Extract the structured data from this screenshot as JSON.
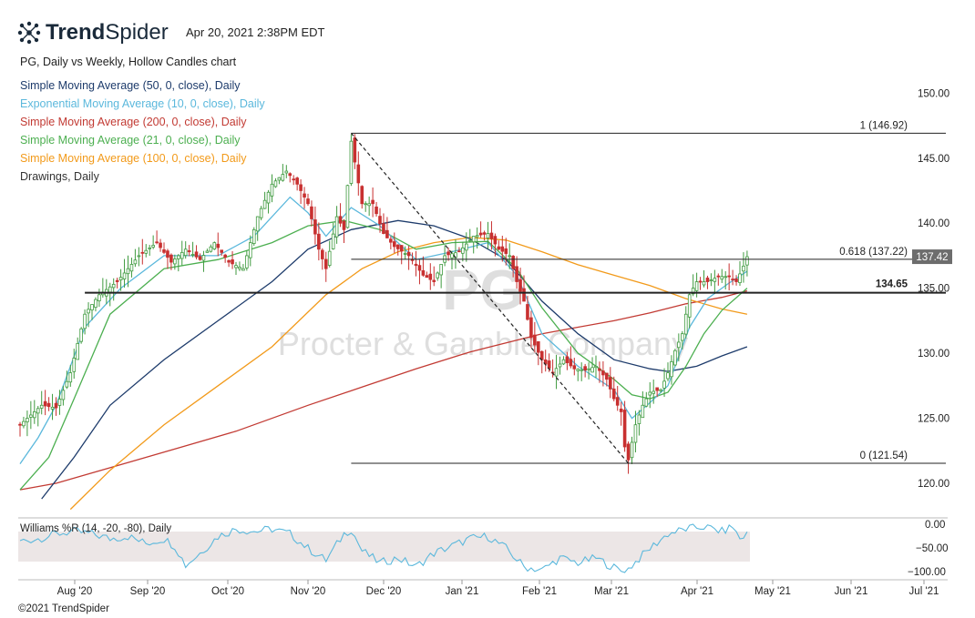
{
  "header": {
    "brand_bold": "Trend",
    "brand_light": "Spider",
    "timestamp": "Apr 20, 2021 2:38PM EDT",
    "subtitle": "PG, Daily vs Weekly, Hollow Candles chart",
    "copyright": "©2021 TrendSpider"
  },
  "legend": [
    {
      "label": "Simple Moving Average (50, 0, close), Daily",
      "color": "#1d3b6b"
    },
    {
      "label": "Exponential Moving Average (10, 0, close), Daily",
      "color": "#5bb8dc"
    },
    {
      "label": "Simple Moving Average (200, 0, close), Daily",
      "color": "#c23a33"
    },
    {
      "label": "Simple Moving Average (21, 0, close), Daily",
      "color": "#4caf50"
    },
    {
      "label": "Simple Moving Average (100, 0, close), Daily",
      "color": "#f29a1a"
    },
    {
      "label": "Drawings, Daily",
      "color": "#333333"
    }
  ],
  "watermark": {
    "symbol": "PG",
    "name": "Procter & Gamble Company"
  },
  "oscillator": {
    "label": "Williams %R (14, -20, -80), Daily",
    "color": "#5bb8dc",
    "ticks": [
      "0.00",
      "−50.00",
      "−100.00"
    ]
  },
  "chart_data": {
    "type": "candlestick",
    "symbol": "PG",
    "ylim": [
      118,
      152
    ],
    "ytick_labels": [
      "120.00",
      "125.00",
      "130.00",
      "135.00",
      "140.00",
      "145.00",
      "150.00"
    ],
    "yticks": [
      120,
      125,
      130,
      135,
      140,
      145,
      150
    ],
    "xtick_labels": [
      "Aug '20",
      "Sep '20",
      "Oct '20",
      "Nov '20",
      "Dec '20",
      "Jan '21",
      "Feb '21",
      "Mar '21",
      "Apr '21",
      "May '21",
      "Jun '21",
      "Jul '21"
    ],
    "price_path": [
      [
        0,
        124.5
      ],
      [
        6,
        126
      ],
      [
        10,
        125.8
      ],
      [
        14,
        128.5
      ],
      [
        18,
        133
      ],
      [
        22,
        134.5
      ],
      [
        27,
        135.5
      ],
      [
        33,
        137.5
      ],
      [
        38,
        138.5
      ],
      [
        42,
        137
      ],
      [
        46,
        138
      ],
      [
        50,
        137.2
      ],
      [
        54,
        138.5
      ],
      [
        58,
        137
      ],
      [
        62,
        136.5
      ],
      [
        66,
        140.5
      ],
      [
        70,
        143
      ],
      [
        74,
        144
      ],
      [
        77,
        143
      ],
      [
        80,
        141.5
      ],
      [
        83,
        138
      ],
      [
        85,
        136.5
      ],
      [
        88,
        140.5
      ],
      [
        90,
        139.5
      ],
      [
        92,
        146.3
      ],
      [
        95,
        141.5
      ],
      [
        98,
        141.5
      ],
      [
        101,
        139.2
      ],
      [
        104,
        138.2
      ],
      [
        108,
        137.5
      ],
      [
        112,
        136
      ],
      [
        115,
        135.5
      ],
      [
        118,
        137.5
      ],
      [
        122,
        137.8
      ],
      [
        126,
        139
      ],
      [
        130,
        139.2
      ],
      [
        133,
        138
      ],
      [
        136,
        137.5
      ],
      [
        138,
        135.5
      ],
      [
        140,
        134
      ],
      [
        142,
        131.2
      ],
      [
        145,
        129.5
      ],
      [
        148,
        128.5
      ],
      [
        151,
        129.5
      ],
      [
        154,
        128.8
      ],
      [
        157,
        128.7
      ],
      [
        160,
        129
      ],
      [
        163,
        128
      ],
      [
        165,
        126.5
      ],
      [
        167,
        125.5
      ],
      [
        168,
        122.8
      ],
      [
        169,
        121.8
      ],
      [
        171,
        124.5
      ],
      [
        173,
        126
      ],
      [
        175,
        127
      ],
      [
        178,
        127.2
      ],
      [
        180,
        128.5
      ],
      [
        182,
        130.2
      ],
      [
        184,
        131.5
      ],
      [
        186,
        134.5
      ],
      [
        188,
        135.5
      ],
      [
        191,
        135.5
      ],
      [
        194,
        135.9
      ],
      [
        197,
        135.9
      ],
      [
        199,
        135.5
      ],
      [
        201,
        136.7
      ],
      [
        202,
        137.42
      ]
    ],
    "sma50_path": [
      [
        6,
        118.8
      ],
      [
        15,
        122
      ],
      [
        25,
        126
      ],
      [
        40,
        129.5
      ],
      [
        55,
        132.5
      ],
      [
        70,
        135.5
      ],
      [
        80,
        138
      ],
      [
        92,
        139.5
      ],
      [
        105,
        140.2
      ],
      [
        115,
        139.8
      ],
      [
        125,
        138.8
      ],
      [
        135,
        137.2
      ],
      [
        145,
        134
      ],
      [
        155,
        131.5
      ],
      [
        165,
        129.5
      ],
      [
        175,
        128.8
      ],
      [
        180,
        128.6
      ],
      [
        188,
        129
      ],
      [
        195,
        129.8
      ],
      [
        202,
        130.5
      ]
    ],
    "ema10_path": [
      [
        0,
        121.5
      ],
      [
        5,
        123.5
      ],
      [
        10,
        126
      ],
      [
        18,
        132
      ],
      [
        28,
        135
      ],
      [
        40,
        137.5
      ],
      [
        55,
        137.5
      ],
      [
        65,
        139
      ],
      [
        75,
        142
      ],
      [
        80,
        140.8
      ],
      [
        85,
        139
      ],
      [
        92,
        141.2
      ],
      [
        100,
        139.8
      ],
      [
        110,
        137.2
      ],
      [
        120,
        137.8
      ],
      [
        130,
        138.5
      ],
      [
        138,
        136
      ],
      [
        145,
        131.5
      ],
      [
        155,
        129
      ],
      [
        165,
        127.2
      ],
      [
        170,
        125
      ],
      [
        175,
        126.2
      ],
      [
        180,
        127.5
      ],
      [
        186,
        132
      ],
      [
        191,
        134.2
      ],
      [
        197,
        135.4
      ],
      [
        202,
        136.3
      ]
    ],
    "sma21_path": [
      [
        0,
        119.5
      ],
      [
        8,
        122
      ],
      [
        15,
        126.5
      ],
      [
        25,
        133
      ],
      [
        40,
        136.5
      ],
      [
        55,
        137.2
      ],
      [
        70,
        138.5
      ],
      [
        80,
        139.8
      ],
      [
        90,
        140.2
      ],
      [
        100,
        139.5
      ],
      [
        110,
        138
      ],
      [
        120,
        138.5
      ],
      [
        130,
        138.6
      ],
      [
        138,
        136.5
      ],
      [
        145,
        133.5
      ],
      [
        155,
        130
      ],
      [
        165,
        128
      ],
      [
        170,
        126.8
      ],
      [
        175,
        126.5
      ],
      [
        180,
        127
      ],
      [
        185,
        129
      ],
      [
        190,
        131.5
      ],
      [
        195,
        133.3
      ],
      [
        202,
        135
      ]
    ],
    "sma100_path": [
      [
        14,
        118
      ],
      [
        25,
        121
      ],
      [
        40,
        124.5
      ],
      [
        55,
        127.5
      ],
      [
        70,
        130.5
      ],
      [
        85,
        134.5
      ],
      [
        95,
        136.5
      ],
      [
        105,
        137.8
      ],
      [
        115,
        138.5
      ],
      [
        125,
        138.9
      ],
      [
        135,
        138.7
      ],
      [
        145,
        137.8
      ],
      [
        155,
        136.8
      ],
      [
        165,
        136
      ],
      [
        175,
        135.2
      ],
      [
        185,
        134.2
      ],
      [
        195,
        133.4
      ],
      [
        202,
        133
      ]
    ],
    "sma200_path": [
      [
        0,
        119.5
      ],
      [
        10,
        120
      ],
      [
        25,
        121.2
      ],
      [
        45,
        122.8
      ],
      [
        60,
        124
      ],
      [
        80,
        126
      ],
      [
        95,
        127.4
      ],
      [
        110,
        128.8
      ],
      [
        125,
        130.1
      ],
      [
        135,
        130.8
      ],
      [
        145,
        131.5
      ],
      [
        155,
        132
      ],
      [
        165,
        132.5
      ],
      [
        175,
        133.1
      ],
      [
        185,
        133.8
      ],
      [
        195,
        134.3
      ],
      [
        202,
        134.8
      ]
    ],
    "drawings": {
      "fib_top": {
        "label": "1 (146.92)",
        "value": 146.92,
        "x_start": 92
      },
      "fib_618": {
        "label": "0.618 (137.22)",
        "value": 137.22,
        "x_start": 92
      },
      "fib_bottom": {
        "label": "0 (121.54)",
        "value": 121.54,
        "x_start": 92
      },
      "support": {
        "label": "134.65",
        "value": 134.65,
        "x_start": 18
      },
      "trend_from": [
        92,
        146.92
      ],
      "trend_to": [
        169,
        121.54
      ]
    },
    "last_price": {
      "label": "137.42",
      "value": 137.42
    },
    "williams_r_path": [
      [
        0,
        -35
      ],
      [
        5,
        -30
      ],
      [
        10,
        -20
      ],
      [
        15,
        -15
      ],
      [
        20,
        -20
      ],
      [
        25,
        -30
      ],
      [
        30,
        -25
      ],
      [
        35,
        -40
      ],
      [
        40,
        -30
      ],
      [
        43,
        -45
      ],
      [
        46,
        -85
      ],
      [
        50,
        -60
      ],
      [
        55,
        -25
      ],
      [
        60,
        -10
      ],
      [
        65,
        -15
      ],
      [
        70,
        -10
      ],
      [
        75,
        -20
      ],
      [
        80,
        -50
      ],
      [
        85,
        -75
      ],
      [
        90,
        -20
      ],
      [
        92,
        -10
      ],
      [
        95,
        -55
      ],
      [
        100,
        -80
      ],
      [
        105,
        -70
      ],
      [
        110,
        -88
      ],
      [
        115,
        -60
      ],
      [
        120,
        -45
      ],
      [
        125,
        -30
      ],
      [
        130,
        -25
      ],
      [
        135,
        -50
      ],
      [
        140,
        -88
      ],
      [
        145,
        -95
      ],
      [
        150,
        -70
      ],
      [
        155,
        -80
      ],
      [
        160,
        -70
      ],
      [
        165,
        -90
      ],
      [
        168,
        -100
      ],
      [
        170,
        -85
      ],
      [
        175,
        -50
      ],
      [
        180,
        -20
      ],
      [
        185,
        -10
      ],
      [
        190,
        -5
      ],
      [
        195,
        -15
      ],
      [
        198,
        -5
      ],
      [
        200,
        -30
      ],
      [
        202,
        -20
      ]
    ]
  }
}
